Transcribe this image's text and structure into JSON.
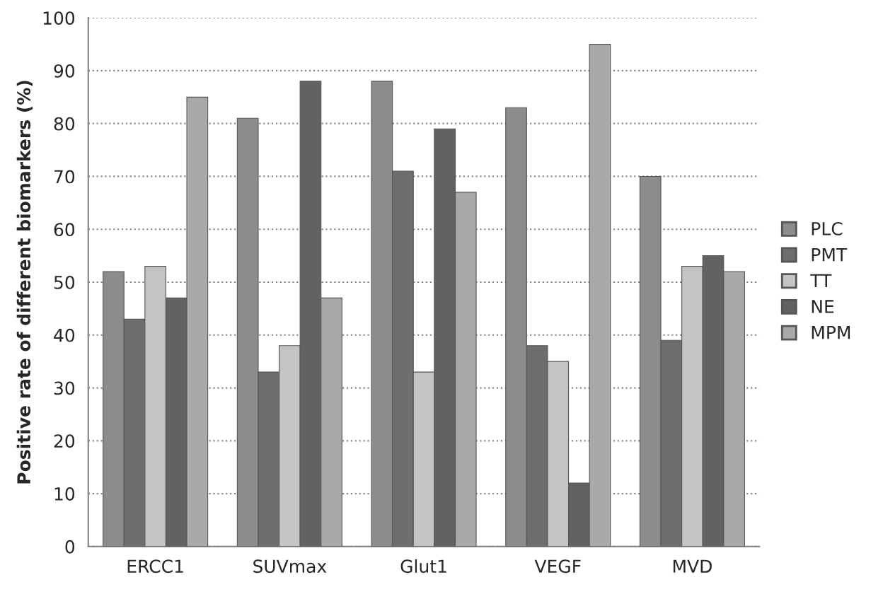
{
  "chart_data": {
    "type": "bar",
    "ylabel": "Positive rate of different biomarkers (%)",
    "categories": [
      "ERCC1",
      "SUVmax",
      "Glut1",
      "VEGF",
      "MVD"
    ],
    "series": [
      {
        "name": "PLC",
        "color": "#8c8c8c",
        "values": [
          52,
          81,
          88,
          83,
          70
        ]
      },
      {
        "name": "PMT",
        "color": "#6e6e6e",
        "values": [
          43,
          33,
          71,
          38,
          39
        ]
      },
      {
        "name": "TT",
        "color": "#c4c4c4",
        "values": [
          53,
          38,
          33,
          35,
          53
        ]
      },
      {
        "name": "NE",
        "color": "#626262",
        "values": [
          47,
          88,
          79,
          12,
          55
        ]
      },
      {
        "name": "MPM",
        "color": "#a9a9a9",
        "values": [
          85,
          47,
          67,
          95,
          52
        ]
      }
    ],
    "ylim": [
      0,
      100
    ],
    "yticks": [
      0,
      10,
      20,
      30,
      40,
      50,
      60,
      70,
      80,
      90,
      100
    ],
    "grid": "y",
    "legend": "right"
  }
}
